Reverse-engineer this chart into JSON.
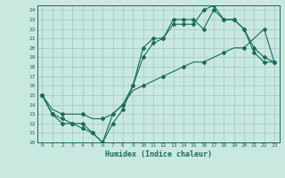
{
  "title": "",
  "xlabel": "Humidex (Indice chaleur)",
  "bg_color": "#c8e8e0",
  "grid_color": "#a8ccc8",
  "line_color": "#1a6a60",
  "xlim": [
    -0.5,
    23.5
  ],
  "ylim": [
    10,
    24.5
  ],
  "yticks": [
    10,
    11,
    12,
    13,
    14,
    15,
    16,
    17,
    18,
    19,
    20,
    21,
    22,
    23,
    24
  ],
  "xticks": [
    0,
    1,
    2,
    3,
    4,
    5,
    6,
    7,
    8,
    9,
    10,
    11,
    12,
    13,
    14,
    15,
    16,
    17,
    18,
    19,
    20,
    21,
    22,
    23
  ],
  "line1_x": [
    0,
    1,
    2,
    3,
    4,
    5,
    6,
    7,
    8,
    9,
    10,
    11,
    12,
    13,
    14,
    15,
    16,
    17,
    18,
    19,
    20,
    21,
    22,
    23
  ],
  "line1_y": [
    15,
    13,
    12,
    12,
    12,
    11,
    10,
    13,
    14,
    16,
    20,
    21,
    21,
    23,
    23,
    23,
    22,
    24,
    23,
    23,
    22,
    20,
    19,
    18.5
  ],
  "line2_x": [
    0,
    1,
    2,
    3,
    4,
    5,
    6,
    7,
    8,
    9,
    10,
    11,
    12,
    13,
    14,
    15,
    16,
    17,
    18,
    19,
    20,
    21,
    22,
    23
  ],
  "line2_y": [
    15,
    13,
    12.5,
    12,
    11.5,
    11,
    10,
    12,
    13.5,
    16,
    19,
    20.5,
    21,
    22.5,
    22.5,
    22.5,
    24,
    24.5,
    23,
    23,
    22,
    19.5,
    18.5,
    18.5
  ],
  "line3_x": [
    0,
    1,
    2,
    3,
    4,
    5,
    6,
    7,
    8,
    9,
    10,
    11,
    12,
    13,
    14,
    15,
    16,
    17,
    18,
    19,
    20,
    21,
    22,
    23
  ],
  "line3_y": [
    15,
    13.5,
    13,
    13,
    13,
    12.5,
    12.5,
    13,
    14,
    15.5,
    16,
    16.5,
    17,
    17.5,
    18,
    18.5,
    18.5,
    19,
    19.5,
    20,
    20,
    21,
    22,
    18.5
  ]
}
